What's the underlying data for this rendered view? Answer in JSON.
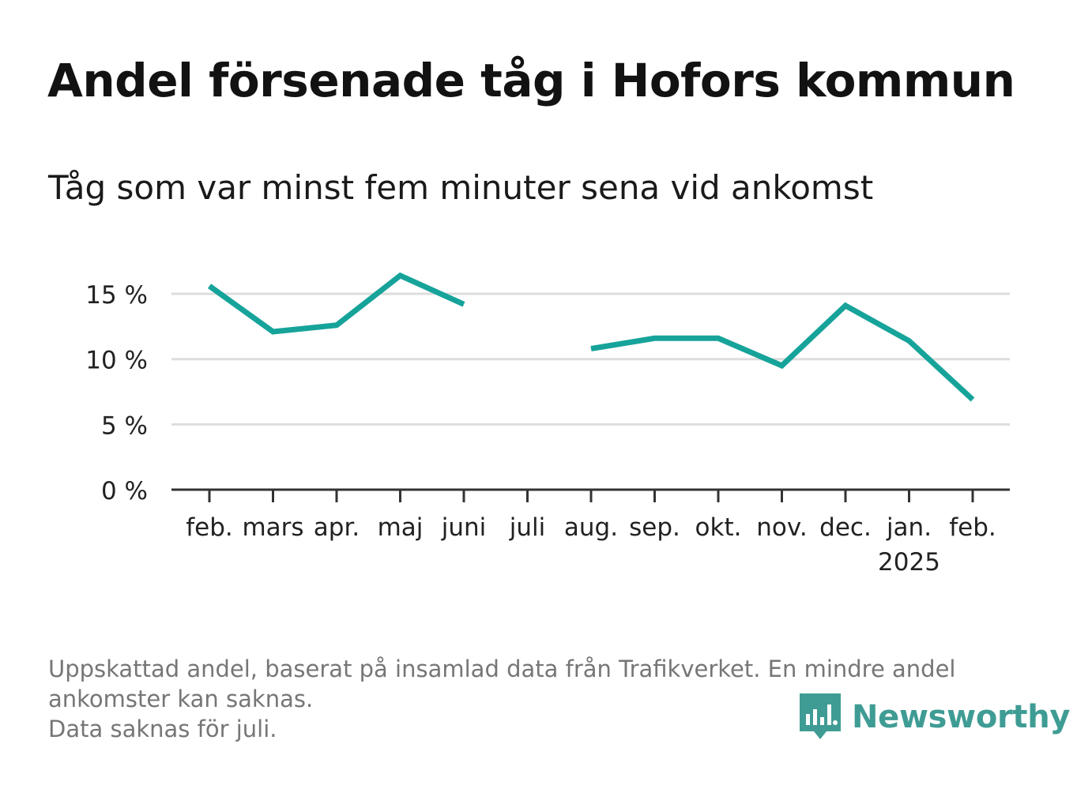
{
  "header": {
    "title": "Andel försenade tåg i Hofors kommun",
    "subtitle": "Tåg som var minst fem minuter sena vid ankomst"
  },
  "footer": {
    "note_line1": "Uppskattad andel, baserat på insamlad data från Trafikverket. En mindre andel",
    "note_line2": "ankomster kan saknas.",
    "note_line3": "Data saknas för juli.",
    "brand": "Newsworthy",
    "brand_icon": "newsworthy-bar-chart-icon"
  },
  "colors": {
    "line": "#16a39a",
    "grid": "#dddddd",
    "axis": "#333333",
    "brand": "#3f9c94"
  },
  "chart_data": {
    "type": "line",
    "title": "Andel försenade tåg i Hofors kommun",
    "subtitle": "Tåg som var minst fem minuter sena vid ankomst",
    "categories": [
      "feb.",
      "mars",
      "apr.",
      "maj",
      "juni",
      "juli",
      "aug.",
      "sep.",
      "okt.",
      "nov.",
      "dec.",
      "jan.",
      "feb."
    ],
    "category_sublabels": [
      "",
      "",
      "",
      "",
      "",
      "",
      "",
      "",
      "",
      "",
      "",
      "2025",
      ""
    ],
    "series": [
      {
        "values": [
          15.6,
          12.1,
          12.6,
          16.4,
          14.2,
          null,
          10.8,
          11.6,
          11.6,
          9.5,
          14.1,
          11.4,
          6.9
        ]
      }
    ],
    "y_ticks": [
      0,
      5,
      10,
      15
    ],
    "y_tick_labels": [
      "0 %",
      "5 %",
      "10 %",
      "15 %"
    ],
    "ylim": [
      0,
      17
    ],
    "xlabel": "",
    "ylabel": "",
    "grid": true,
    "legend": "none"
  }
}
